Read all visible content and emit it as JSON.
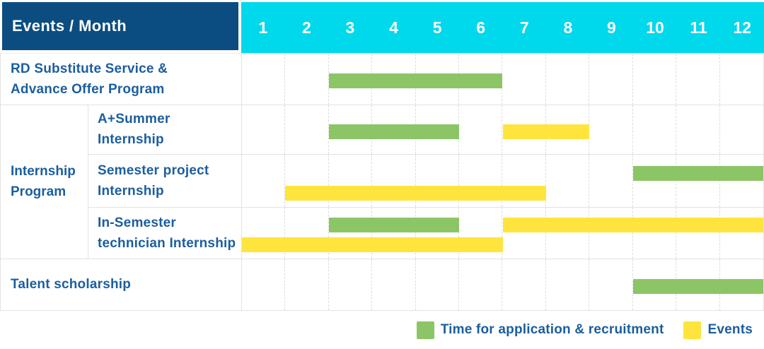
{
  "header": {
    "title": "Events / Month"
  },
  "group": {
    "label": "Internship\nProgram"
  },
  "colors": {
    "header_navy": "#0B4D81",
    "header_cyan": "#00D8EC",
    "bar_green": "#8CC565",
    "bar_yellow": "#FFE43D",
    "label_blue": "#1B5E9E",
    "grid_line": "#E2E2E2"
  },
  "chart_data": {
    "type": "gantt",
    "title": "Events / Month",
    "x_unit": "month",
    "x_ticks": [
      "1",
      "2",
      "3",
      "4",
      "5",
      "6",
      "7",
      "8",
      "9",
      "10",
      "11",
      "12"
    ],
    "x_range": [
      1,
      12
    ],
    "grid": true,
    "legend_position": "bottom-right",
    "legend": [
      {
        "key": "application",
        "label": "Time for application & recruitment",
        "color": "#8CC565"
      },
      {
        "key": "event",
        "label": "Events",
        "color": "#FFE43D"
      }
    ],
    "groups": [
      {
        "label": "Internship\nProgram",
        "row_indexes": [
          1,
          2,
          3
        ]
      }
    ],
    "rows": [
      {
        "label": "RD Substitute Service &\nAdvance Offer Program",
        "group": null,
        "bars": [
          {
            "kind": "application",
            "start_month": 3,
            "end_month": 6,
            "line": 0
          }
        ]
      },
      {
        "label": "A+Summer\nInternship",
        "group": "Internship Program",
        "bars": [
          {
            "kind": "application",
            "start_month": 3,
            "end_month": 5,
            "line": 0
          },
          {
            "kind": "event",
            "start_month": 7,
            "end_month": 8,
            "line": 0
          }
        ]
      },
      {
        "label": "Semester project\nInternship",
        "group": "Internship Program",
        "bars": [
          {
            "kind": "application",
            "start_month": 10,
            "end_month": 12,
            "line": 0
          },
          {
            "kind": "event",
            "start_month": 2,
            "end_month": 7,
            "line": 1
          }
        ]
      },
      {
        "label": "In-Semester\ntechnician Internship",
        "group": "Internship Program",
        "bars": [
          {
            "kind": "application",
            "start_month": 3,
            "end_month": 5,
            "line": 0
          },
          {
            "kind": "event",
            "start_month": 7,
            "end_month": 12,
            "line": 0
          },
          {
            "kind": "event",
            "start_month": 1,
            "end_month": 6,
            "line": 1
          }
        ]
      },
      {
        "label": "Talent scholarship",
        "group": null,
        "bars": [
          {
            "kind": "application",
            "start_month": 10,
            "end_month": 12,
            "line": 0
          }
        ]
      }
    ]
  }
}
